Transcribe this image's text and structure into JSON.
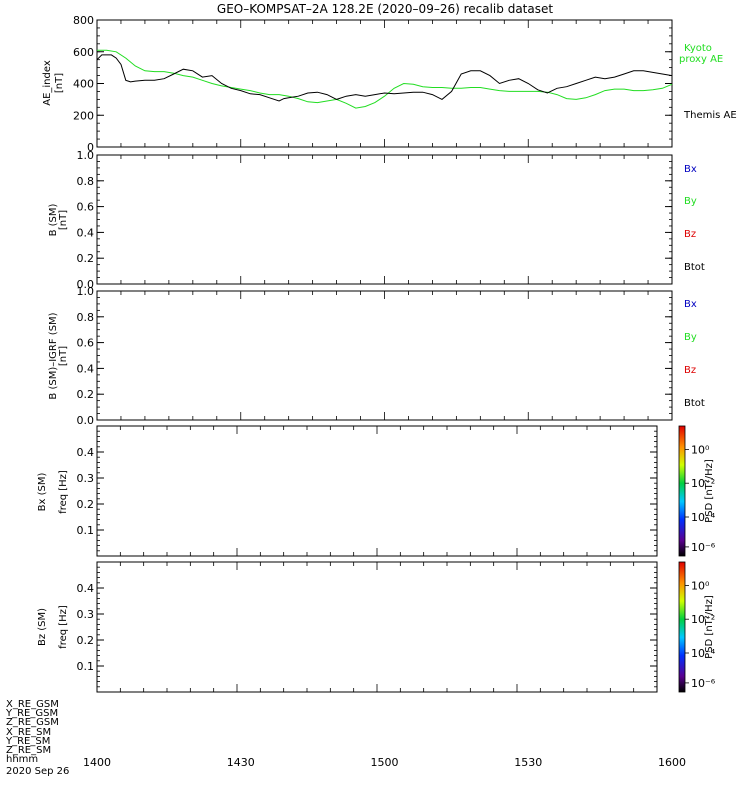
{
  "title": "GEO–KOMPSAT–2A 128.2E (2020–09–26) recalib dataset",
  "colors": {
    "black": "#000000",
    "green": "#22dd22",
    "blue": "#0000c0",
    "red": "#dd0000"
  },
  "time_axis": {
    "tick_labels": [
      "1400",
      "1430",
      "1500",
      "1530",
      "1600"
    ],
    "tick_minutes": [
      0,
      30,
      60,
      90,
      120
    ],
    "range_minutes": [
      0,
      120
    ],
    "axis_label": "hhmm",
    "date_label": "2020 Sep 26"
  },
  "ephemeris_labels": [
    "X_RE_GSM",
    "Y_RE_GSM",
    "Z_RE_GSM",
    "X_RE_SM",
    "Y_RE_SM",
    "Z_RE_SM"
  ],
  "panels": {
    "ae": {
      "ylabel1": "AE_index",
      "ylabel2": "[nT]",
      "ytick_labels": [
        "0",
        "200",
        "400",
        "600",
        "800"
      ],
      "legend_kyoto_1": "Kyoto",
      "legend_kyoto_2": "proxy AE",
      "legend_themis": "Themis AE"
    },
    "b": {
      "ylabel1": "B (SM)",
      "ylabel2": "[nT]",
      "ytick_labels": [
        "0.0",
        "0.2",
        "0.4",
        "0.6",
        "0.8",
        "1.0"
      ],
      "legend": [
        "Bx",
        "By",
        "Bz",
        "Btot"
      ]
    },
    "bdiff": {
      "ylabel1": "B (SM)–IGRF (SM)",
      "ylabel2": "[nT]",
      "ytick_labels": [
        "0.0",
        "0.2",
        "0.4",
        "0.6",
        "0.8",
        "1.0"
      ],
      "legend": [
        "Bx",
        "By",
        "Bz",
        "Btot"
      ]
    },
    "bx_spec": {
      "ylabel1": "Bx (SM)",
      "ylabel2": "freq [Hz]",
      "ytick_labels": [
        "0.1",
        "0.2",
        "0.3",
        "0.4"
      ],
      "colorbar_label": "PSD [nT²/Hz]",
      "colorbar_ticks": [
        "10⁰",
        "10⁻²",
        "10⁻⁴",
        "10⁻⁶"
      ]
    },
    "bz_spec": {
      "ylabel1": "Bz (SM)",
      "ylabel2": "freq [Hz]",
      "ytick_labels": [
        "0.1",
        "0.2",
        "0.3",
        "0.4"
      ],
      "colorbar_label": "PSD [nT²/Hz]",
      "colorbar_ticks": [
        "10⁰",
        "10⁻²",
        "10⁻⁴",
        "10⁻⁶"
      ]
    }
  },
  "chart_data": [
    {
      "type": "line",
      "ylim": [
        0,
        800
      ],
      "xlim": [
        0,
        120
      ],
      "series": [
        {
          "name": "Kyoto proxy AE",
          "color": "#22dd22",
          "x": [
            0,
            2,
            4,
            6,
            8,
            10,
            12,
            14,
            16,
            18,
            20,
            22,
            24,
            26,
            28,
            30,
            32,
            34,
            36,
            38,
            40,
            42,
            44,
            46,
            48,
            50,
            52,
            54,
            56,
            58,
            60,
            62,
            64,
            66,
            68,
            70,
            72,
            74,
            76,
            78,
            80,
            82,
            84,
            86,
            88,
            90,
            92,
            94,
            96,
            98,
            100,
            102,
            104,
            106,
            108,
            110,
            112,
            114,
            116,
            118,
            120
          ],
          "y": [
            610,
            610,
            600,
            560,
            510,
            480,
            475,
            475,
            465,
            450,
            440,
            420,
            400,
            385,
            375,
            365,
            355,
            340,
            330,
            330,
            320,
            305,
            285,
            280,
            290,
            300,
            275,
            245,
            255,
            280,
            320,
            370,
            400,
            395,
            380,
            375,
            375,
            370,
            370,
            375,
            375,
            365,
            355,
            350,
            350,
            350,
            350,
            345,
            330,
            305,
            300,
            310,
            330,
            355,
            365,
            365,
            355,
            355,
            360,
            370,
            395
          ]
        },
        {
          "name": "Themis AE",
          "color": "#000000",
          "x": [
            0,
            1,
            3,
            4,
            5,
            6,
            7,
            8,
            10,
            12,
            14,
            16,
            18,
            20,
            22,
            24,
            26,
            28,
            30,
            32,
            34,
            36,
            38,
            39,
            40,
            42,
            44,
            46,
            48,
            50,
            52,
            54,
            56,
            58,
            60,
            62,
            64,
            66,
            68,
            70,
            72,
            74,
            76,
            78,
            80,
            82,
            84,
            86,
            88,
            90,
            92,
            94,
            96,
            98,
            100,
            102,
            104,
            106,
            108,
            110,
            112,
            114,
            116,
            118,
            120
          ],
          "y": [
            550,
            580,
            580,
            560,
            520,
            420,
            410,
            415,
            420,
            420,
            430,
            460,
            490,
            480,
            440,
            450,
            400,
            370,
            355,
            335,
            330,
            310,
            290,
            305,
            310,
            320,
            340,
            345,
            330,
            300,
            320,
            330,
            320,
            330,
            340,
            335,
            340,
            345,
            345,
            330,
            300,
            350,
            460,
            480,
            480,
            450,
            400,
            420,
            430,
            400,
            360,
            340,
            370,
            380,
            400,
            420,
            440,
            430,
            440,
            460,
            480,
            480,
            470,
            460,
            450
          ]
        }
      ]
    },
    {
      "type": "line",
      "ylim": [
        0,
        1
      ],
      "xlim": [
        0,
        120
      ],
      "series": []
    },
    {
      "type": "line",
      "ylim": [
        0,
        1
      ],
      "xlim": [
        0,
        120
      ],
      "series": []
    },
    {
      "type": "heatmap",
      "ylim": [
        0,
        0.5
      ],
      "xlim": [
        0,
        120
      ],
      "values": []
    },
    {
      "type": "heatmap",
      "ylim": [
        0,
        0.5
      ],
      "xlim": [
        0,
        120
      ],
      "values": []
    }
  ]
}
